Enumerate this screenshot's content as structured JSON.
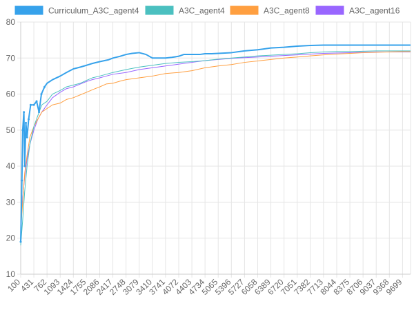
{
  "chart_data": {
    "type": "line",
    "y_axis": {
      "ylim": [
        10,
        80
      ],
      "ticks": [
        10,
        20,
        30,
        40,
        50,
        60,
        70,
        80
      ]
    },
    "x_axis": {
      "range": [
        100,
        9900
      ],
      "tick_labels": [
        "100",
        "431",
        "762",
        "1093",
        "1424",
        "1755",
        "2086",
        "2417",
        "2748",
        "3079",
        "3410",
        "3741",
        "4072",
        "4403",
        "4734",
        "5065",
        "5396",
        "5727",
        "6058",
        "6389",
        "6720",
        "7051",
        "7382",
        "7713",
        "8044",
        "8375",
        "8706",
        "9037",
        "9368",
        "9699"
      ]
    },
    "grid": true,
    "legend_position": "top",
    "series": [
      {
        "name": "Curriculum_A3C_agent4",
        "color": "#36a2eb",
        "points": [
          [
            100,
            19
          ],
          [
            130,
            36
          ],
          [
            150,
            50
          ],
          [
            180,
            55
          ],
          [
            200,
            40
          ],
          [
            230,
            52
          ],
          [
            260,
            48
          ],
          [
            300,
            53
          ],
          [
            350,
            57
          ],
          [
            431,
            57
          ],
          [
            500,
            58
          ],
          [
            560,
            55
          ],
          [
            620,
            60
          ],
          [
            700,
            62
          ],
          [
            762,
            63
          ],
          [
            900,
            64
          ],
          [
            1093,
            65
          ],
          [
            1250,
            66
          ],
          [
            1424,
            67
          ],
          [
            1600,
            67.5
          ],
          [
            1755,
            68
          ],
          [
            1900,
            68.5
          ],
          [
            2086,
            69
          ],
          [
            2300,
            69.5
          ],
          [
            2417,
            70
          ],
          [
            2600,
            70.5
          ],
          [
            2748,
            71
          ],
          [
            2900,
            71.3
          ],
          [
            3079,
            71.5
          ],
          [
            3250,
            71
          ],
          [
            3410,
            70
          ],
          [
            3600,
            70
          ],
          [
            3741,
            70
          ],
          [
            3900,
            70.2
          ],
          [
            4072,
            70.5
          ],
          [
            4200,
            71
          ],
          [
            4403,
            71
          ],
          [
            4600,
            71
          ],
          [
            4734,
            71.2
          ],
          [
            4900,
            71.2
          ],
          [
            5065,
            71.3
          ],
          [
            5396,
            71.5
          ],
          [
            5727,
            72
          ],
          [
            6058,
            72.3
          ],
          [
            6389,
            72.8
          ],
          [
            6720,
            73
          ],
          [
            7051,
            73.3
          ],
          [
            7382,
            73.5
          ],
          [
            7713,
            73.6
          ],
          [
            8044,
            73.6
          ],
          [
            8375,
            73.6
          ],
          [
            8706,
            73.6
          ],
          [
            9037,
            73.6
          ],
          [
            9368,
            73.6
          ],
          [
            9699,
            73.6
          ],
          [
            9900,
            73.6
          ]
        ]
      },
      {
        "name": "A3C_agent4",
        "color": "#4bc0c0",
        "points": [
          [
            100,
            18
          ],
          [
            150,
            25
          ],
          [
            200,
            33
          ],
          [
            260,
            40
          ],
          [
            330,
            46
          ],
          [
            431,
            51
          ],
          [
            530,
            54
          ],
          [
            630,
            57
          ],
          [
            762,
            58
          ],
          [
            900,
            60
          ],
          [
            1093,
            61
          ],
          [
            1250,
            62
          ],
          [
            1424,
            62.5
          ],
          [
            1600,
            63
          ],
          [
            1755,
            63.8
          ],
          [
            1900,
            64.5
          ],
          [
            2086,
            65
          ],
          [
            2250,
            65.5
          ],
          [
            2417,
            66
          ],
          [
            2748,
            66.8
          ],
          [
            3079,
            67.5
          ],
          [
            3410,
            68
          ],
          [
            3741,
            68.5
          ],
          [
            4072,
            68.8
          ],
          [
            4403,
            69
          ],
          [
            4734,
            69.3
          ],
          [
            5065,
            69.7
          ],
          [
            5396,
            70
          ],
          [
            5727,
            70.3
          ],
          [
            6058,
            70.6
          ],
          [
            6389,
            70.8
          ],
          [
            6720,
            71
          ],
          [
            7051,
            71.2
          ],
          [
            7382,
            71.5
          ],
          [
            7713,
            71.7
          ],
          [
            8044,
            71.8
          ],
          [
            8375,
            71.8
          ],
          [
            8706,
            71.9
          ],
          [
            9037,
            72
          ],
          [
            9368,
            72
          ],
          [
            9699,
            72
          ],
          [
            9900,
            72
          ]
        ]
      },
      {
        "name": "A3C_agent8",
        "color": "#ff9f40",
        "points": [
          [
            100,
            22
          ],
          [
            150,
            30
          ],
          [
            200,
            38
          ],
          [
            260,
            43
          ],
          [
            330,
            48
          ],
          [
            431,
            51
          ],
          [
            530,
            53
          ],
          [
            630,
            55
          ],
          [
            762,
            56
          ],
          [
            900,
            57
          ],
          [
            1093,
            57.5
          ],
          [
            1250,
            58.5
          ],
          [
            1424,
            59
          ],
          [
            1600,
            59.8
          ],
          [
            1755,
            60.5
          ],
          [
            1900,
            61.2
          ],
          [
            2086,
            62
          ],
          [
            2250,
            62.8
          ],
          [
            2417,
            63
          ],
          [
            2600,
            63.6
          ],
          [
            2748,
            64
          ],
          [
            3079,
            64.5
          ],
          [
            3410,
            65
          ],
          [
            3741,
            65.7
          ],
          [
            4072,
            66
          ],
          [
            4403,
            66.5
          ],
          [
            4734,
            67.3
          ],
          [
            5065,
            67.8
          ],
          [
            5396,
            68.2
          ],
          [
            5727,
            68.8
          ],
          [
            6058,
            69.2
          ],
          [
            6389,
            69.6
          ],
          [
            6720,
            70
          ],
          [
            7051,
            70.3
          ],
          [
            7382,
            70.6
          ],
          [
            7713,
            70.9
          ],
          [
            8044,
            71.1
          ],
          [
            8375,
            71.3
          ],
          [
            8706,
            71.5
          ],
          [
            9037,
            71.6
          ],
          [
            9368,
            71.7
          ],
          [
            9699,
            71.8
          ],
          [
            9900,
            71.8
          ]
        ]
      },
      {
        "name": "A3C_agent16",
        "color": "#9966ff",
        "points": [
          [
            100,
            24
          ],
          [
            150,
            31
          ],
          [
            200,
            37
          ],
          [
            260,
            42
          ],
          [
            330,
            46
          ],
          [
            431,
            50
          ],
          [
            530,
            53
          ],
          [
            630,
            55
          ],
          [
            762,
            57
          ],
          [
            900,
            59
          ],
          [
            1093,
            60.5
          ],
          [
            1250,
            61.5
          ],
          [
            1424,
            62
          ],
          [
            1600,
            62.8
          ],
          [
            1755,
            63.5
          ],
          [
            1900,
            64
          ],
          [
            2086,
            64.5
          ],
          [
            2250,
            65
          ],
          [
            2417,
            65.5
          ],
          [
            2748,
            66
          ],
          [
            3079,
            66.8
          ],
          [
            3410,
            67.3
          ],
          [
            3741,
            67.8
          ],
          [
            4072,
            68.3
          ],
          [
            4403,
            68.8
          ],
          [
            4734,
            69.3
          ],
          [
            5065,
            69.6
          ],
          [
            5396,
            69.9
          ],
          [
            5727,
            70.1
          ],
          [
            6058,
            70.3
          ],
          [
            6389,
            70.5
          ],
          [
            6720,
            70.7
          ],
          [
            7051,
            70.9
          ],
          [
            7382,
            71.1
          ],
          [
            7713,
            71.3
          ],
          [
            8044,
            71.4
          ],
          [
            8375,
            71.5
          ],
          [
            8706,
            71.6
          ],
          [
            9037,
            71.7
          ],
          [
            9368,
            71.7
          ],
          [
            9699,
            71.7
          ],
          [
            9900,
            71.7
          ]
        ]
      }
    ]
  }
}
